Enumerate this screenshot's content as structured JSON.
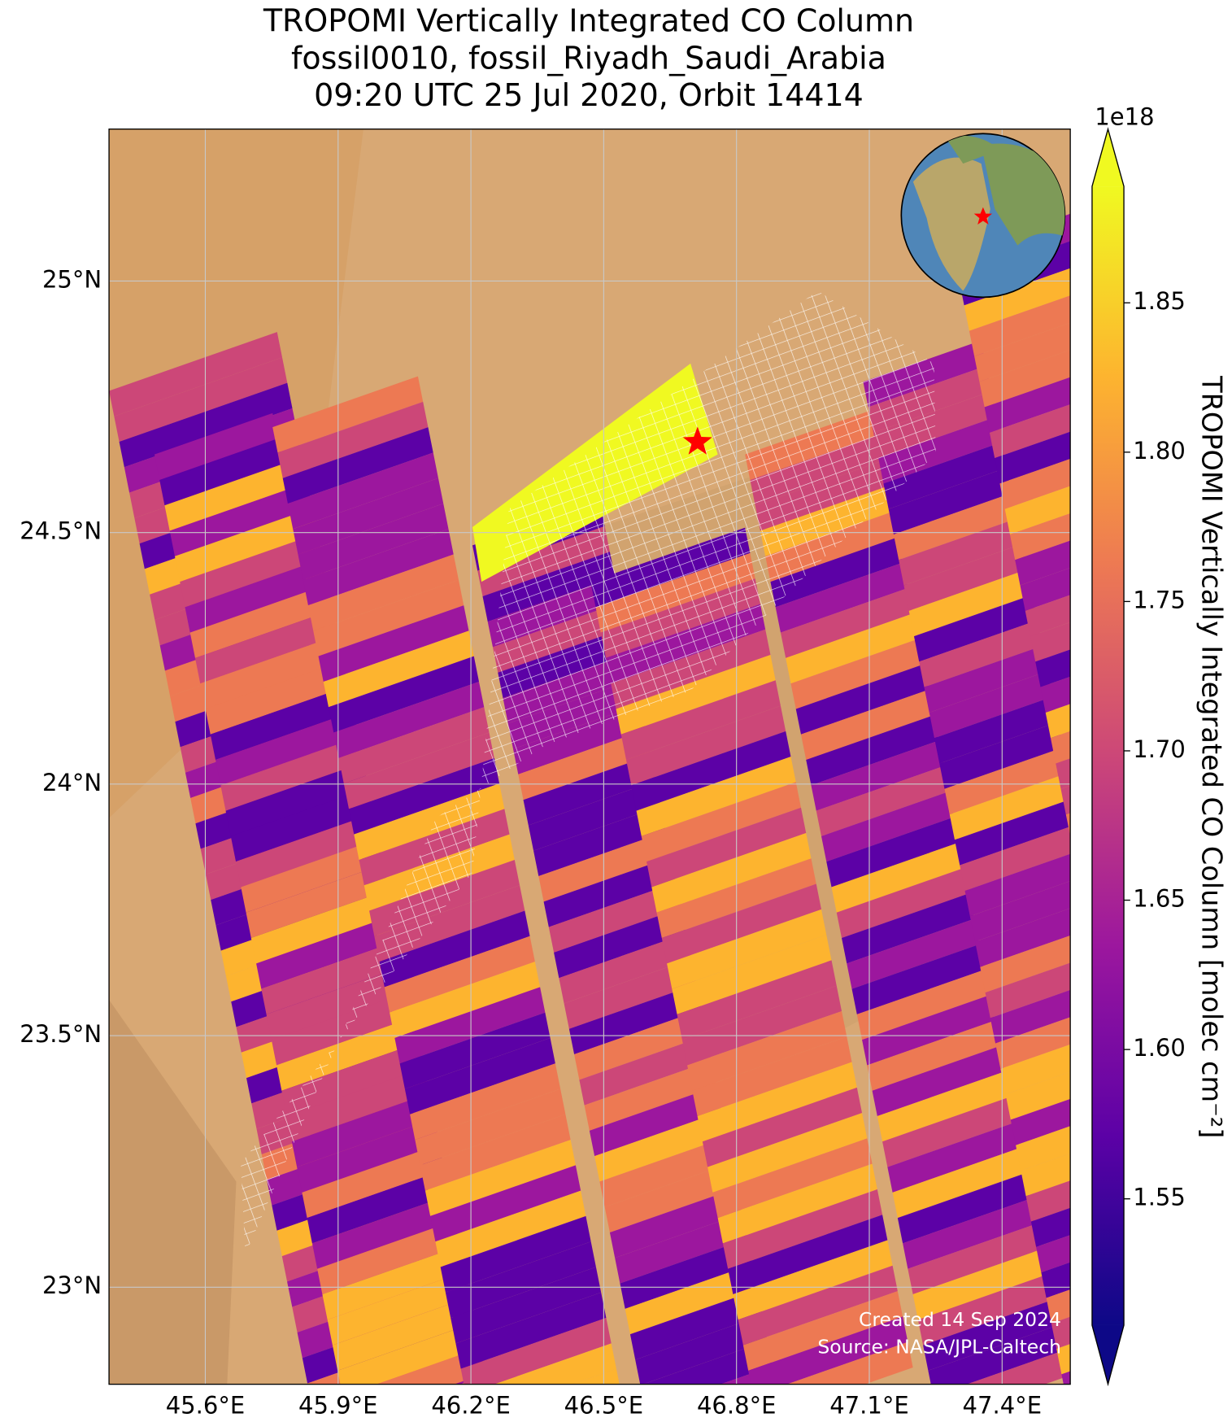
{
  "chart_data": {
    "type": "map",
    "title": [
      "TROPOMI Vertically Integrated CO Column",
      "fossil0010, fossil_Riyadh_Saudi_Arabia",
      "09:20 UTC 25 Jul 2020, Orbit 14414"
    ],
    "xlim": [
      45.3825,
      47.554
    ],
    "ylim": [
      22.807,
      25.302
    ],
    "xticks": [
      {
        "value": 45.6,
        "label": "45.6°E"
      },
      {
        "value": 45.9,
        "label": "45.9°E"
      },
      {
        "value": 46.2,
        "label": "46.2°E"
      },
      {
        "value": 46.5,
        "label": "46.5°E"
      },
      {
        "value": 46.8,
        "label": "46.8°E"
      },
      {
        "value": 47.1,
        "label": "47.1°E"
      },
      {
        "value": 47.4,
        "label": "47.4°E"
      }
    ],
    "yticks": [
      {
        "value": 23,
        "label": "23°N"
      },
      {
        "value": 23.5,
        "label": "23.5°N"
      },
      {
        "value": 24,
        "label": "24°N"
      },
      {
        "value": 24.5,
        "label": "24.5°N"
      },
      {
        "value": 25,
        "label": "25°N"
      }
    ],
    "grid": true,
    "marker": {
      "lon": 46.712,
      "lat": 24.68,
      "color": "#ff0000"
    },
    "colorbar": {
      "lim": [
        1.5077,
        1.889
      ],
      "ticks": [
        1.55,
        {
          "value": 1.6,
          "label": "1.60"
        },
        1.65,
        {
          "value": 1.7,
          "label": "1.70"
        },
        1.75,
        {
          "value": 1.8,
          "label": "1.80"
        },
        1.85
      ],
      "exponent_label": "1e18",
      "label": "TROPOMI Vertically Integrated CO Column [molec cm⁻²]",
      "colormap": [
        "#0d0887",
        "#5c01a6",
        "#9c179e",
        "#cc4778",
        "#ed7953",
        "#fdb42f",
        "#f0f921"
      ]
    },
    "annotations": [
      "Created 14 Sep 2024",
      "Source: NASA/JPL-Caltech"
    ]
  }
}
